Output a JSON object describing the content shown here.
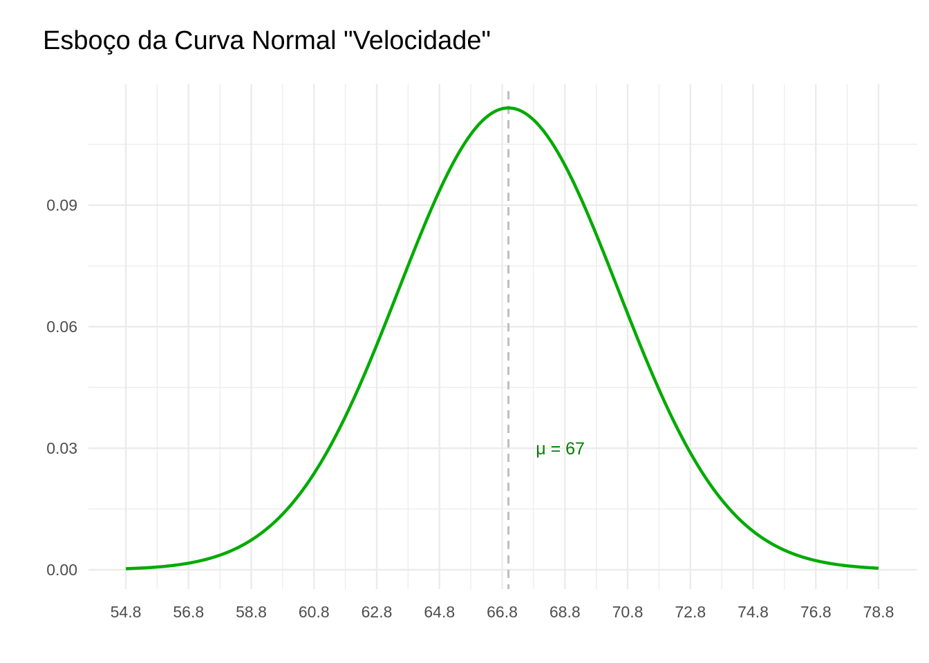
{
  "chart_data": {
    "type": "line",
    "title": "Esboço da Curva Normal \"Velocidade\"",
    "xlabel": "",
    "ylabel": "",
    "distribution": "normal",
    "mean": 67,
    "sd": 3.5,
    "xlim": [
      54.8,
      78.8
    ],
    "ylim": [
      0,
      0.114
    ],
    "x_ticks": [
      54.8,
      56.8,
      58.8,
      60.8,
      62.8,
      64.8,
      66.8,
      68.8,
      70.8,
      72.8,
      74.8,
      76.8,
      78.8
    ],
    "x_tick_labels": [
      "54.8",
      "56.8",
      "58.8",
      "60.8",
      "62.8",
      "64.8",
      "66.8",
      "68.8",
      "70.8",
      "72.8",
      "74.8",
      "76.8",
      "78.8"
    ],
    "y_ticks": [
      0,
      0.03,
      0.06,
      0.09
    ],
    "y_tick_labels": [
      "0.00",
      "0.03",
      "0.06",
      "0.09"
    ],
    "line_color": "#00AA00",
    "reference_line": {
      "x": 67,
      "style": "dashed",
      "color": "#BEBEBE"
    },
    "annotation": {
      "text": "μ = 67",
      "x": 68.8,
      "y": 0.03,
      "color": "#008000"
    },
    "grid": true,
    "legend": "none"
  }
}
